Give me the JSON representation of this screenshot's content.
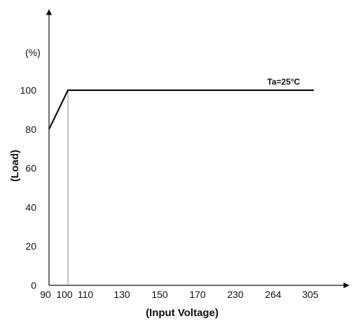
{
  "chart_data": {
    "type": "line",
    "x_ticks": [
      "90",
      "100",
      "110",
      "130",
      "150",
      "170",
      "230",
      "264",
      "305"
    ],
    "y_ticks": [
      "0",
      "20",
      "40",
      "60",
      "80",
      "100"
    ],
    "y_unit": "(%)",
    "xlabel": "(Input Voltage)",
    "ylabel": "(Load)",
    "ylim": [
      0,
      100
    ],
    "series": [
      {
        "points": [
          {
            "x": "90",
            "y": 80
          },
          {
            "x": "100",
            "y": 100
          },
          {
            "x": "305",
            "y": 100
          }
        ]
      }
    ],
    "annotations": [
      {
        "text": "Ta=25°C",
        "x": "264",
        "y": 100
      }
    ],
    "reference_lines": [
      {
        "orientation": "vertical",
        "x": "100",
        "y_from": 0,
        "y_to": 100
      }
    ],
    "colors": {
      "line": "#111111",
      "axis": "#111111",
      "reference": "#888888"
    }
  }
}
